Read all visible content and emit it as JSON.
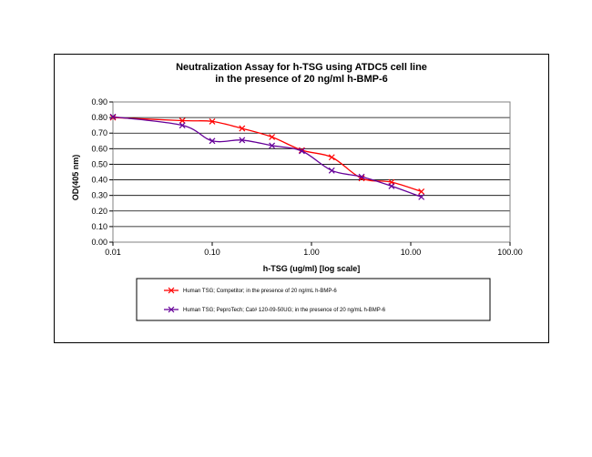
{
  "chart_data": {
    "type": "line",
    "title": "Neutralization Assay for h-TSG using ATDC5 cell line",
    "subtitle": "in the presence of 20 ng/ml h-BMP-6",
    "xlabel": "h-TSG (ug/ml) [log scale]",
    "ylabel": "OD(405 nm)",
    "xscale": "log",
    "xlim": [
      0.01,
      100
    ],
    "ylim": [
      0,
      0.9
    ],
    "x_ticks": [
      "0.01",
      "0.10",
      "1.00",
      "10.00",
      "100.00"
    ],
    "y_ticks": [
      "0.00",
      "0.10",
      "0.20",
      "0.30",
      "0.40",
      "0.50",
      "0.60",
      "0.70",
      "0.80",
      "0.90"
    ],
    "grid": "horizontal",
    "legend_position": "bottom",
    "series": [
      {
        "name": "Human TSG; Competitor; in the presence of 20 ng/mL h-BMP-6",
        "color": "#ff0000",
        "marker": "x",
        "x": [
          0.01,
          0.05,
          0.1,
          0.2,
          0.4,
          0.8,
          1.6,
          3.2,
          6.4,
          12.8
        ],
        "y": [
          0.8,
          0.78,
          0.775,
          0.73,
          0.675,
          0.59,
          0.545,
          0.41,
          0.385,
          0.325
        ]
      },
      {
        "name": "Human TSG; PeproTech; Cat# 120-09-50UG; in the presence of 20 ng/mL h-BMP-6",
        "color": "#660099",
        "marker": "x",
        "x": [
          0.01,
          0.05,
          0.1,
          0.2,
          0.4,
          0.8,
          1.6,
          3.2,
          6.4,
          12.8
        ],
        "y": [
          0.805,
          0.75,
          0.65,
          0.655,
          0.62,
          0.585,
          0.46,
          0.42,
          0.36,
          0.29
        ]
      }
    ]
  }
}
